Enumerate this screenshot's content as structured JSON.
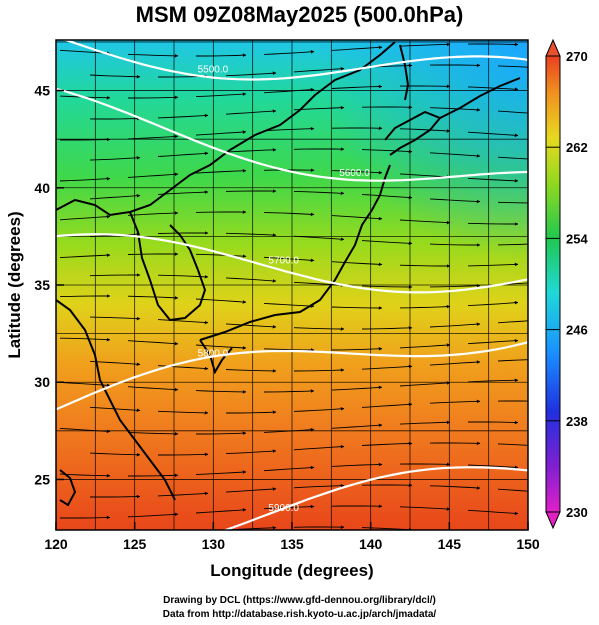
{
  "title": "MSM 09Z08May2025 (500.0hPa)",
  "x_axis": {
    "label": "Longitude (degrees)",
    "range": [
      120,
      150
    ],
    "ticks": [
      "120",
      "125",
      "130",
      "135",
      "140",
      "145",
      "150"
    ]
  },
  "y_axis": {
    "label": "Latitude  (degrees)",
    "range": [
      22.4,
      47.6
    ],
    "ticks": [
      "25",
      "30",
      "35",
      "40",
      "45"
    ]
  },
  "colorbar": {
    "range": [
      230,
      270
    ],
    "tick_labels": [
      "230",
      "238",
      "246",
      "254",
      "262",
      "270"
    ]
  },
  "contours": [
    {
      "label": "5800.0",
      "lat_at_120": 28.6,
      "lat_at_150": 33.2
    },
    {
      "label": "5700.0",
      "lat_at_120": 36.5,
      "lat_at_150": 35.6
    },
    {
      "label": "5600.0",
      "lat_at_120": 44.0,
      "lat_at_150": 40.0
    },
    {
      "label": "5500.0",
      "lat_at_120": 47.6,
      "lat_at_150": 45.4
    },
    {
      "label": "5900.0",
      "lat_at_120": 21.8,
      "lat_at_150": 25.0
    }
  ],
  "footer": {
    "line1": "Drawing by DCL (https://www.gfd-dennou.org/library/dcl/)",
    "line2": "Data from http://database.rish.kyoto-u.ac.jp/arch/jmadata/"
  }
}
